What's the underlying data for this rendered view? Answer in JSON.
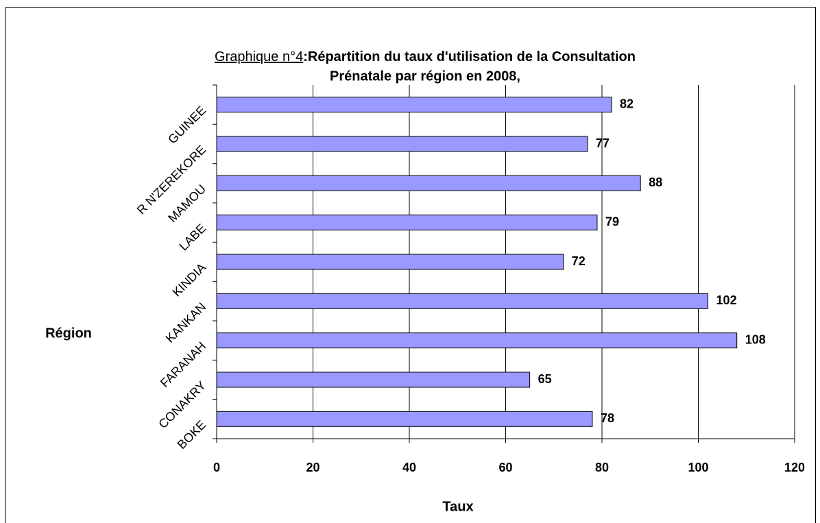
{
  "chart_data": {
    "type": "bar",
    "orientation": "horizontal",
    "title_label": "Graphique n°4",
    "title": [
      ":Répartition du taux d'utilisation de la Consultation",
      "Prénatale par région en 2008,"
    ],
    "x_label": "Taux",
    "y_label": "Région",
    "categories": [
      "BOKE",
      "CONAKRY",
      "FARANAH",
      "KANKAN",
      "KINDIA",
      "LABE",
      "MAMOU",
      "R N'ZEREKORE",
      "GUINEE"
    ],
    "values": [
      78,
      65,
      108,
      102,
      72,
      79,
      88,
      77,
      82
    ],
    "color": "#9999ff",
    "xlim": [
      0,
      120
    ],
    "xticks": [
      0,
      20,
      40,
      60,
      80,
      100,
      120
    ],
    "grid": true
  }
}
